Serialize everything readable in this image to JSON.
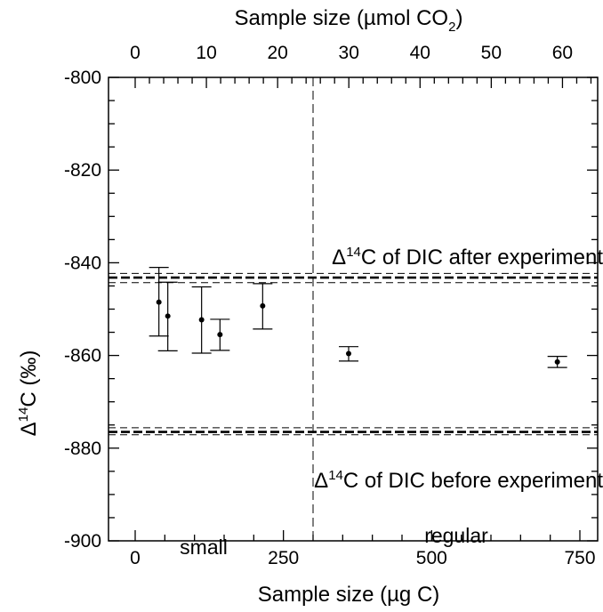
{
  "chart_data": {
    "type": "scatter",
    "title": "",
    "xlabel": "Sample size (µg C)",
    "ylabel_prefix": "Δ",
    "ylabel_sup": "14",
    "ylabel_suffix": "C (‰)",
    "top_xlabel_main": "Sample size (µmol CO",
    "top_xlabel_sub": "2",
    "top_xlabel_close": ")",
    "xlim": [
      -45,
      780
    ],
    "ylim": [
      -900,
      -800
    ],
    "x_ticks": [
      0,
      250,
      500,
      750
    ],
    "x_tick_labels": [
      "0",
      "250",
      "500",
      "750"
    ],
    "y_ticks": [
      -800,
      -820,
      -840,
      -860,
      -880,
      -900
    ],
    "y_tick_labels": [
      "-800",
      "-820",
      "-840",
      "-860",
      "-880",
      "-900"
    ],
    "top_ticks_umol": [
      0,
      10,
      20,
      30,
      40,
      50,
      60
    ],
    "top_tick_labels": [
      "0",
      "10",
      "20",
      "30",
      "40",
      "50",
      "60"
    ],
    "ugC_per_umol": 12.011,
    "grid": false,
    "points": [
      {
        "x": 40,
        "y": -848.5,
        "err_low": -855.8,
        "err_high": -841.0
      },
      {
        "x": 55,
        "y": -851.5,
        "err_low": -859.0,
        "err_high": -844.2
      },
      {
        "x": 112,
        "y": -852.3,
        "err_low": -859.5,
        "err_high": -845.2
      },
      {
        "x": 143,
        "y": -855.5,
        "err_low": -858.9,
        "err_high": -852.2
      },
      {
        "x": 215,
        "y": -849.3,
        "err_low": -854.3,
        "err_high": -844.5
      },
      {
        "x": 360,
        "y": -859.6,
        "err_low": -861.2,
        "err_high": -858.1
      },
      {
        "x": 712,
        "y": -861.4,
        "err_low": -862.6,
        "err_high": -860.2
      }
    ],
    "reference_lines": [
      {
        "name": "after",
        "value": -843.2,
        "band_low": -844.3,
        "band_high": -842.3
      },
      {
        "name": "before",
        "value": -876.5,
        "band_low": -877.1,
        "band_high": -875.6
      }
    ],
    "divider_x": 300,
    "annotations": [
      {
        "prefix": "Δ",
        "sup": "14",
        "text": "C of DIC after experiment"
      },
      {
        "prefix": "Δ",
        "sup": "14",
        "text": "C of DIC before experiment"
      }
    ],
    "region_labels": [
      "small",
      "regular"
    ]
  }
}
